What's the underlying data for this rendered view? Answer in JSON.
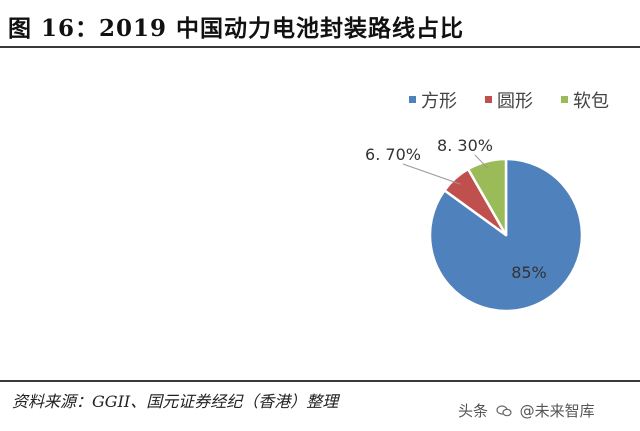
{
  "title": "图 16：2019 中国动力电池封装路线占比",
  "source": "资料来源：GGII、国元证券经纪（香港）整理",
  "watermark": {
    "prefix": "头条",
    "name": "@未来智库"
  },
  "chart_data": {
    "type": "pie",
    "title": "图 16：2019 中国动力电池封装路线占比",
    "categories": [
      "方形",
      "圆形",
      "软包"
    ],
    "values": [
      85,
      6.7,
      8.3
    ],
    "labels": [
      "85%",
      "6. 70%",
      "8. 30%"
    ],
    "colors": [
      "#4f81bd",
      "#c0504d",
      "#9bbb59"
    ],
    "legend_position": "top-right",
    "start_angle_deg": 0,
    "direction": "clockwise"
  }
}
